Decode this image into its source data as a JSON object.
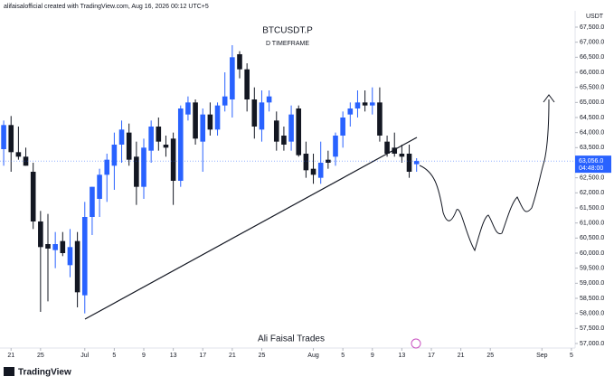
{
  "header": "alifaisalofficial created with TradingView.com, Aug 16, 2026 00:12 UTC+5",
  "footer_logo": "TradingView",
  "chart_data": {
    "type": "candlestick",
    "title": "BTCUSDT.P",
    "subtitle": "D TIMEFRAME",
    "watermark": "Ali Faisal Trades",
    "y_unit": "USDT",
    "up_color": "#2962ff",
    "down_color": "#131722",
    "categories": [
      null,
      null,
      null,
      null,
      null,
      null,
      null,
      null,
      null,
      null,
      null,
      null,
      null,
      null,
      null,
      null,
      null,
      null,
      null,
      null,
      null,
      null,
      null,
      null,
      null,
      null,
      null,
      null,
      null,
      null,
      null,
      null,
      null,
      null,
      null,
      null,
      null,
      null,
      null,
      null,
      null,
      null,
      null,
      null,
      null,
      null,
      null,
      null,
      null,
      null,
      null,
      null,
      null,
      null,
      null,
      null,
      null
    ],
    "open": [
      63450,
      64250,
      63350,
      63200,
      62700,
      61050,
      60300,
      60100,
      60400,
      59600,
      60400,
      58600,
      61200,
      61800,
      62600,
      62900,
      63600,
      64000,
      63200,
      62200,
      63400,
      64200,
      63600,
      63800,
      62400,
      64600,
      65000,
      63700,
      64600,
      64100,
      64900,
      65100,
      66600,
      66100,
      65100,
      64100,
      65000,
      64400,
      63900,
      63700,
      64800,
      63300,
      62800,
      62500,
      63100,
      63200,
      63900,
      64600,
      64800,
      65000,
      64900,
      65000,
      63700,
      63500,
      63300,
      63300,
      62950
    ],
    "high": [
      64400,
      64550,
      64200,
      63500,
      63000,
      61400,
      61300,
      60700,
      60700,
      60800,
      60700,
      61700,
      62200,
      62800,
      63300,
      64000,
      64400,
      64300,
      63700,
      63800,
      64400,
      64500,
      63900,
      64000,
      64900,
      65200,
      65100,
      64800,
      65000,
      65000,
      66000,
      66900,
      66700,
      66300,
      65500,
      65400,
      65400,
      64700,
      64200,
      64900,
      64900,
      63700,
      63300,
      63700,
      63400,
      64000,
      64700,
      65000,
      65400,
      65400,
      65500,
      65500,
      63900,
      64000,
      63600,
      63600,
      63150
    ],
    "low": [
      62900,
      62700,
      63100,
      62900,
      60800,
      58050,
      58400,
      59500,
      59900,
      59200,
      58200,
      58000,
      60600,
      61200,
      61700,
      62100,
      63000,
      62900,
      61600,
      61800,
      63000,
      63400,
      63200,
      61600,
      62200,
      64400,
      63600,
      62700,
      63900,
      63900,
      64700,
      64500,
      65800,
      64700,
      63800,
      63700,
      64700,
      63400,
      63400,
      63400,
      63200,
      62500,
      62300,
      62300,
      62800,
      62900,
      63500,
      64200,
      64500,
      64700,
      64600,
      63700,
      63200,
      63200,
      63000,
      62500,
      62700
    ],
    "close": [
      64250,
      63350,
      63200,
      62900,
      61050,
      60200,
      60150,
      60300,
      60000,
      60200,
      58700,
      61200,
      62200,
      62600,
      63100,
      63600,
      64100,
      63100,
      62200,
      63500,
      64200,
      63700,
      63500,
      62400,
      64800,
      65000,
      63800,
      64600,
      64100,
      64900,
      65200,
      66500,
      66100,
      65100,
      64200,
      65000,
      65200,
      63700,
      63600,
      64600,
      63250,
      62750,
      62600,
      63000,
      63000,
      63900,
      64500,
      64800,
      65000,
      64900,
      65000,
      63900,
      63300,
      63300,
      63200,
      62700,
      63056
    ],
    "xlim": [
      -0.5,
      77.5
    ],
    "xticks": [
      {
        "value": 1,
        "label": "21"
      },
      {
        "value": 5,
        "label": "25"
      },
      {
        "value": 11,
        "label": "Jul"
      },
      {
        "value": 15,
        "label": "5"
      },
      {
        "value": 19,
        "label": "9"
      },
      {
        "value": 23,
        "label": "13"
      },
      {
        "value": 27,
        "label": "17"
      },
      {
        "value": 31,
        "label": "21"
      },
      {
        "value": 35,
        "label": "25"
      },
      {
        "value": 42,
        "label": "Aug"
      },
      {
        "value": 46,
        "label": "5"
      },
      {
        "value": 50,
        "label": "9"
      },
      {
        "value": 54,
        "label": "13"
      },
      {
        "value": 58,
        "label": "17"
      },
      {
        "value": 62,
        "label": "21"
      },
      {
        "value": 66,
        "label": "25"
      },
      {
        "value": 73,
        "label": "Sep"
      },
      {
        "value": 77,
        "label": "5"
      }
    ],
    "ylim": [
      56850,
      68400
    ],
    "yticks": [
      {
        "value": 57000,
        "label": "57,000.0"
      },
      {
        "value": 57500,
        "label": "57,500.0"
      },
      {
        "value": 58000,
        "label": "58,000.0"
      },
      {
        "value": 58500,
        "label": "58,500.0"
      },
      {
        "value": 59000,
        "label": "59,000.0"
      },
      {
        "value": 59500,
        "label": "59,500.0"
      },
      {
        "value": 60000,
        "label": "60,000.0"
      },
      {
        "value": 60500,
        "label": "60,500.0"
      },
      {
        "value": 61000,
        "label": "61,000.0"
      },
      {
        "value": 61500,
        "label": "61,500.0"
      },
      {
        "value": 62000,
        "label": "62,000.0"
      },
      {
        "value": 62500,
        "label": "62,500.0"
      },
      {
        "value": 63000,
        "label": "63,000.0"
      },
      {
        "value": 63500,
        "label": "63,500.0"
      },
      {
        "value": 64000,
        "label": "64,000.0"
      },
      {
        "value": 64500,
        "label": "64,500.0"
      },
      {
        "value": 65000,
        "label": "65,000.0"
      },
      {
        "value": 65500,
        "label": "65,500.0"
      },
      {
        "value": 66000,
        "label": "66,000.0"
      },
      {
        "value": 66500,
        "label": "66,500.0"
      },
      {
        "value": 67000,
        "label": "67,000.0"
      },
      {
        "value": 67500,
        "label": "67,500.0"
      }
    ],
    "last_price": {
      "value": 63056,
      "label": "63,056.0"
    },
    "countdown": "04:48:00"
  }
}
